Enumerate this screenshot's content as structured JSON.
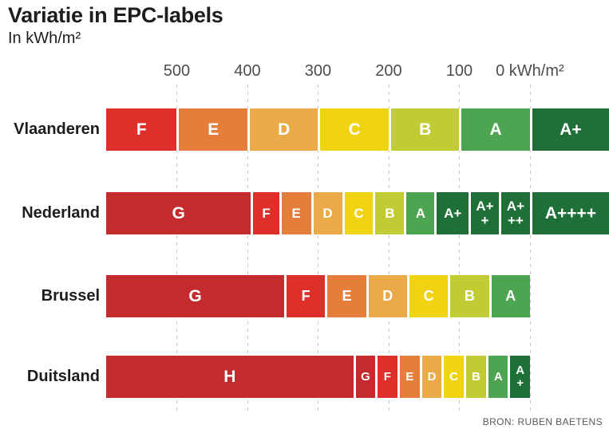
{
  "header": {
    "title": "Variatie in EPC-labels",
    "subtitle": "In kWh/m²"
  },
  "source": {
    "label": "BRON: RUBEN BAETENS"
  },
  "colors": {
    "dark_red": "#c32b2e",
    "red": "#de2f2b",
    "orange": "#e57d3b",
    "amber": "#eaaa47",
    "yellow": "#f0d414",
    "yellow_green": "#c1cb34",
    "green": "#4da551",
    "dark_green": "#1e7038"
  },
  "chart_data": {
    "type": "bar",
    "subtype": "horizontal-stacked-ranges",
    "title": "Variatie in EPC-labels",
    "unit": "kWh/m²",
    "legend": "none",
    "axis": {
      "position": "top",
      "direction": "descending-left-to-right",
      "max": 600,
      "min": -112,
      "gridlines": "dashed-vertical",
      "ticks": [
        {
          "value": 500,
          "label": "500"
        },
        {
          "value": 400,
          "label": "400"
        },
        {
          "value": 300,
          "label": "300"
        },
        {
          "value": 200,
          "label": "200"
        },
        {
          "value": 100,
          "label": "100"
        },
        {
          "value": 0,
          "label": "0 kWh/m²"
        }
      ]
    },
    "rows": [
      {
        "name": "Vlaanderen",
        "segments": [
          {
            "name": "F",
            "label": "F",
            "from": 600,
            "to": 500,
            "color": "red"
          },
          {
            "name": "E",
            "label": "E",
            "from": 500,
            "to": 400,
            "color": "orange"
          },
          {
            "name": "D",
            "label": "D",
            "from": 400,
            "to": 300,
            "color": "amber"
          },
          {
            "name": "C",
            "label": "C",
            "from": 300,
            "to": 200,
            "color": "yellow"
          },
          {
            "name": "B",
            "label": "B",
            "from": 200,
            "to": 100,
            "color": "yellow_green"
          },
          {
            "name": "A",
            "label": "A",
            "from": 100,
            "to": 0,
            "color": "green"
          },
          {
            "name": "A+",
            "label": "A+",
            "from": 0,
            "to": -112,
            "color": "dark_green"
          }
        ]
      },
      {
        "name": "Nederland",
        "segments": [
          {
            "name": "G",
            "label": "G",
            "from": 600,
            "to": 395,
            "color": "dark_red"
          },
          {
            "name": "F",
            "label": "F",
            "from": 395,
            "to": 355,
            "color": "red"
          },
          {
            "name": "E",
            "label": "E",
            "from": 355,
            "to": 310,
            "color": "orange"
          },
          {
            "name": "D",
            "label": "D",
            "from": 310,
            "to": 266,
            "color": "amber"
          },
          {
            "name": "C",
            "label": "C",
            "from": 266,
            "to": 222,
            "color": "yellow"
          },
          {
            "name": "B",
            "label": "B",
            "from": 222,
            "to": 178,
            "color": "yellow_green"
          },
          {
            "name": "A",
            "label": "A",
            "from": 178,
            "to": 135,
            "color": "green"
          },
          {
            "name": "A+",
            "label": "A+",
            "from": 135,
            "to": 87,
            "color": "dark_green"
          },
          {
            "name": "A++",
            "label": "A+\n+",
            "from": 87,
            "to": 44,
            "color": "dark_green"
          },
          {
            "name": "A+++",
            "label": "A+\n++",
            "from": 44,
            "to": 0,
            "color": "dark_green"
          },
          {
            "name": "A++++",
            "label": "A++++",
            "from": 0,
            "to": -112,
            "color": "dark_green"
          }
        ]
      },
      {
        "name": "Brussel",
        "segments": [
          {
            "name": "G",
            "label": "G",
            "from": 600,
            "to": 348,
            "color": "dark_red"
          },
          {
            "name": "F",
            "label": "F",
            "from": 348,
            "to": 290,
            "color": "red"
          },
          {
            "name": "E",
            "label": "E",
            "from": 290,
            "to": 232,
            "color": "orange"
          },
          {
            "name": "D",
            "label": "D",
            "from": 232,
            "to": 174,
            "color": "amber"
          },
          {
            "name": "C",
            "label": "C",
            "from": 174,
            "to": 116,
            "color": "yellow"
          },
          {
            "name": "B",
            "label": "B",
            "from": 116,
            "to": 58,
            "color": "yellow_green"
          },
          {
            "name": "A",
            "label": "A",
            "from": 58,
            "to": 0,
            "color": "green"
          }
        ]
      },
      {
        "name": "Duitsland",
        "segments": [
          {
            "name": "H",
            "label": "H",
            "from": 600,
            "to": 250,
            "color": "dark_red"
          },
          {
            "name": "G",
            "label": "G",
            "from": 250,
            "to": 219,
            "color": "dark_red"
          },
          {
            "name": "F",
            "label": "F",
            "from": 219,
            "to": 188,
            "color": "red"
          },
          {
            "name": "E",
            "label": "E",
            "from": 188,
            "to": 156,
            "color": "orange"
          },
          {
            "name": "D",
            "label": "D",
            "from": 156,
            "to": 125,
            "color": "amber"
          },
          {
            "name": "C",
            "label": "C",
            "from": 125,
            "to": 94,
            "color": "yellow"
          },
          {
            "name": "B",
            "label": "B",
            "from": 94,
            "to": 62,
            "color": "yellow_green"
          },
          {
            "name": "A",
            "label": "A",
            "from": 62,
            "to": 31,
            "color": "green"
          },
          {
            "name": "A+",
            "label": "A\n+",
            "from": 31,
            "to": 0,
            "color": "dark_green"
          }
        ]
      }
    ]
  }
}
